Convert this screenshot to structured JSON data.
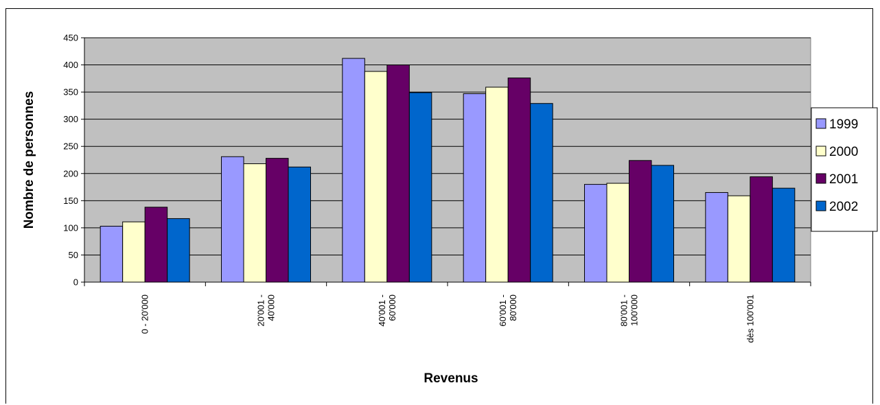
{
  "chart_data": {
    "type": "bar",
    "title": "",
    "xlabel": "Revenus",
    "ylabel": "Nombre de personnes",
    "ylim": [
      0,
      450
    ],
    "yticks": [
      0,
      50,
      100,
      150,
      200,
      250,
      300,
      350,
      400,
      450
    ],
    "grid": true,
    "legend_position": "right",
    "categories": [
      [
        "0 - 20'000"
      ],
      [
        "20'001 -",
        "40'000"
      ],
      [
        "40'001 -",
        "60'000"
      ],
      [
        "60'001 -",
        "80'000"
      ],
      [
        "80'001 -",
        "100'000"
      ],
      [
        "dès 100'001"
      ]
    ],
    "series": [
      {
        "name": "1999",
        "color": "#9999ff",
        "values": [
          103,
          231,
          412,
          347,
          180,
          165
        ]
      },
      {
        "name": "2000",
        "color": "#ffffcc",
        "values": [
          111,
          218,
          388,
          359,
          182,
          159
        ]
      },
      {
        "name": "2001",
        "color": "#660066",
        "values": [
          138,
          228,
          400,
          376,
          224,
          194
        ]
      },
      {
        "name": "2002",
        "color": "#0066cc",
        "values": [
          117,
          212,
          349,
          329,
          215,
          173
        ]
      }
    ],
    "plot_background": "#c0c0c0"
  }
}
